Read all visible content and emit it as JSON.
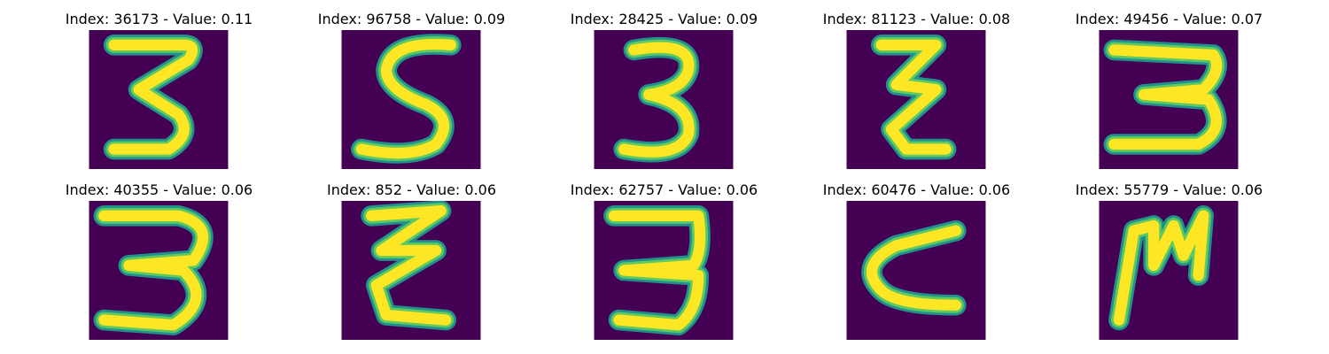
{
  "colors": {
    "background": "#440154",
    "stroke_outer": "#21918c",
    "stroke_mid": "#5ec962",
    "stroke_inner": "#fde725"
  },
  "images": [
    {
      "index_label": "36173",
      "value_label": "0.11",
      "glyph": "3"
    },
    {
      "index_label": "96758",
      "value_label": "0.09",
      "glyph": "S"
    },
    {
      "index_label": "28425",
      "value_label": "0.09",
      "glyph": "3"
    },
    {
      "index_label": "81123",
      "value_label": "0.08",
      "glyph": "ƺ"
    },
    {
      "index_label": "49456",
      "value_label": "0.07",
      "glyph": "3"
    },
    {
      "index_label": "40355",
      "value_label": "0.06",
      "glyph": "3"
    },
    {
      "index_label": "852",
      "value_label": "0.06",
      "glyph": "ƺ"
    },
    {
      "index_label": "62757",
      "value_label": "0.06",
      "glyph": "3"
    },
    {
      "index_label": "60476",
      "value_label": "0.06",
      "glyph": "c"
    },
    {
      "index_label": "55779",
      "value_label": "0.06",
      "glyph": "m"
    }
  ]
}
